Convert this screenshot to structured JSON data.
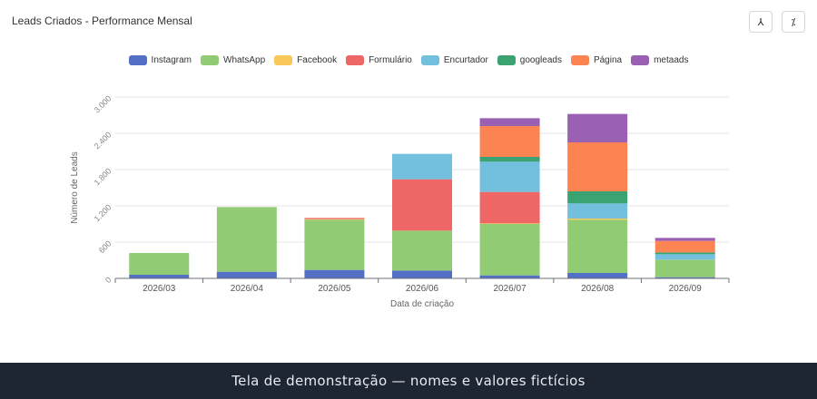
{
  "card": {
    "title": "Leads Criados - Performance Mensal",
    "buttons": [
      {
        "name": "reset-zoom-button",
        "icon": "person-icon",
        "glyph": "⅄"
      },
      {
        "name": "zoom-toggle-button",
        "icon": "percent-icon",
        "glyph": "⁒"
      }
    ]
  },
  "footer": {
    "text": "Tela de demonstração — nomes e valores fictícios"
  },
  "chart_data": {
    "type": "bar",
    "stacked": true,
    "title": "",
    "xlabel": "Data de criação",
    "ylabel": "Número de Leads",
    "ylim": [
      0,
      3000
    ],
    "yticks": [
      0,
      600,
      1200,
      1800,
      2400,
      3000
    ],
    "ytick_labels": [
      "0",
      "600",
      "1.200",
      "1.800",
      "2.400",
      "3.000"
    ],
    "grid": true,
    "legend_position": "top-center",
    "categories": [
      "2026/03",
      "2026/04",
      "2026/05",
      "2026/06",
      "2026/07",
      "2026/08",
      "2026/09"
    ],
    "series": [
      {
        "name": "Instagram",
        "color": "#5470c6",
        "values": [
          60,
          110,
          140,
          130,
          50,
          90,
          20
        ]
      },
      {
        "name": "WhatsApp",
        "color": "#91cc75",
        "values": [
          360,
          1070,
          830,
          660,
          850,
          880,
          290
        ]
      },
      {
        "name": "Facebook",
        "color": "#fac858",
        "values": [
          0,
          0,
          10,
          0,
          10,
          20,
          0
        ]
      },
      {
        "name": "Formulário",
        "color": "#ee6666",
        "values": [
          0,
          0,
          20,
          850,
          520,
          0,
          0
        ]
      },
      {
        "name": "Encurtador",
        "color": "#73c0de",
        "values": [
          0,
          0,
          0,
          420,
          500,
          250,
          90
        ]
      },
      {
        "name": "googleads",
        "color": "#3ba272",
        "values": [
          0,
          0,
          0,
          0,
          80,
          200,
          30
        ]
      },
      {
        "name": "Página",
        "color": "#fc8452",
        "values": [
          0,
          0,
          0,
          0,
          510,
          810,
          190
        ]
      },
      {
        "name": "metaads",
        "color": "#9a60b4",
        "values": [
          0,
          0,
          0,
          0,
          130,
          470,
          50
        ]
      }
    ]
  }
}
